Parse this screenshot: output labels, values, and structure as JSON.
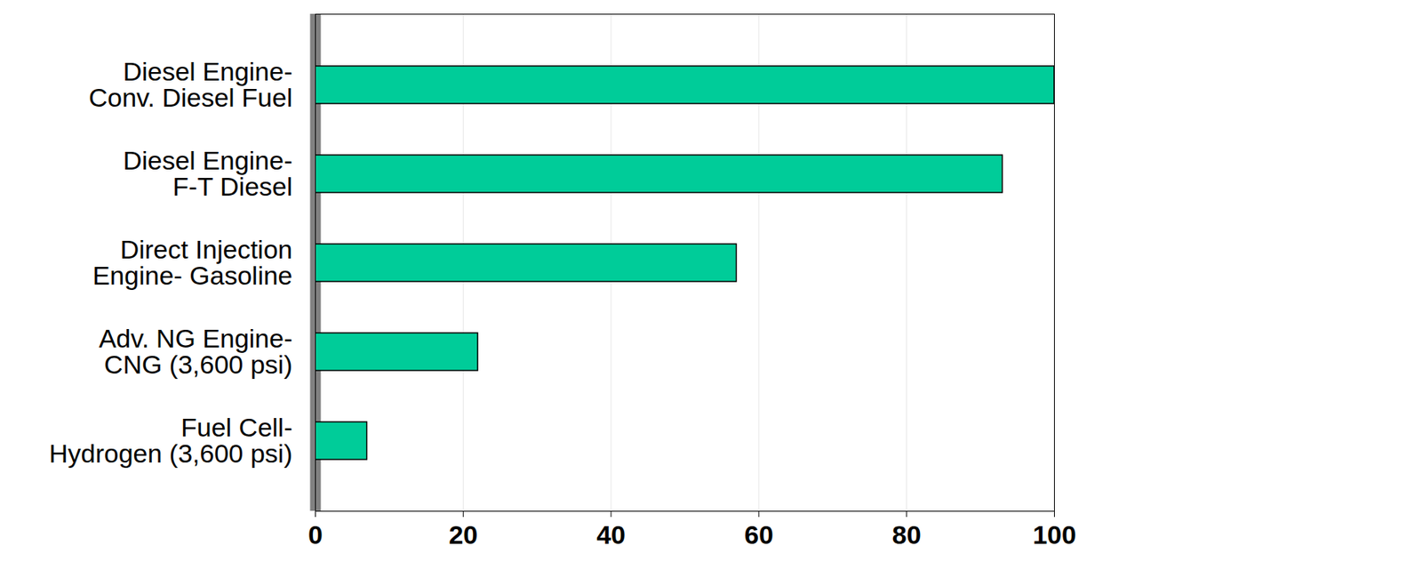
{
  "chart_data": {
    "type": "bar",
    "orientation": "horizontal",
    "categories": [
      "Diesel Engine-\nConv. Diesel Fuel",
      "Diesel Engine-\nF-T Diesel",
      "Direct Injection\nEngine- Gasoline",
      "Adv. NG Engine-\nCNG (3,600 psi)",
      "Fuel Cell-\nHydrogen (3,600 psi)"
    ],
    "values": [
      100,
      93,
      57,
      22,
      7
    ],
    "color": "#00cc99",
    "xlim": [
      0,
      100
    ],
    "xticks": [
      0,
      20,
      40,
      60,
      80,
      100
    ],
    "grid": true
  }
}
